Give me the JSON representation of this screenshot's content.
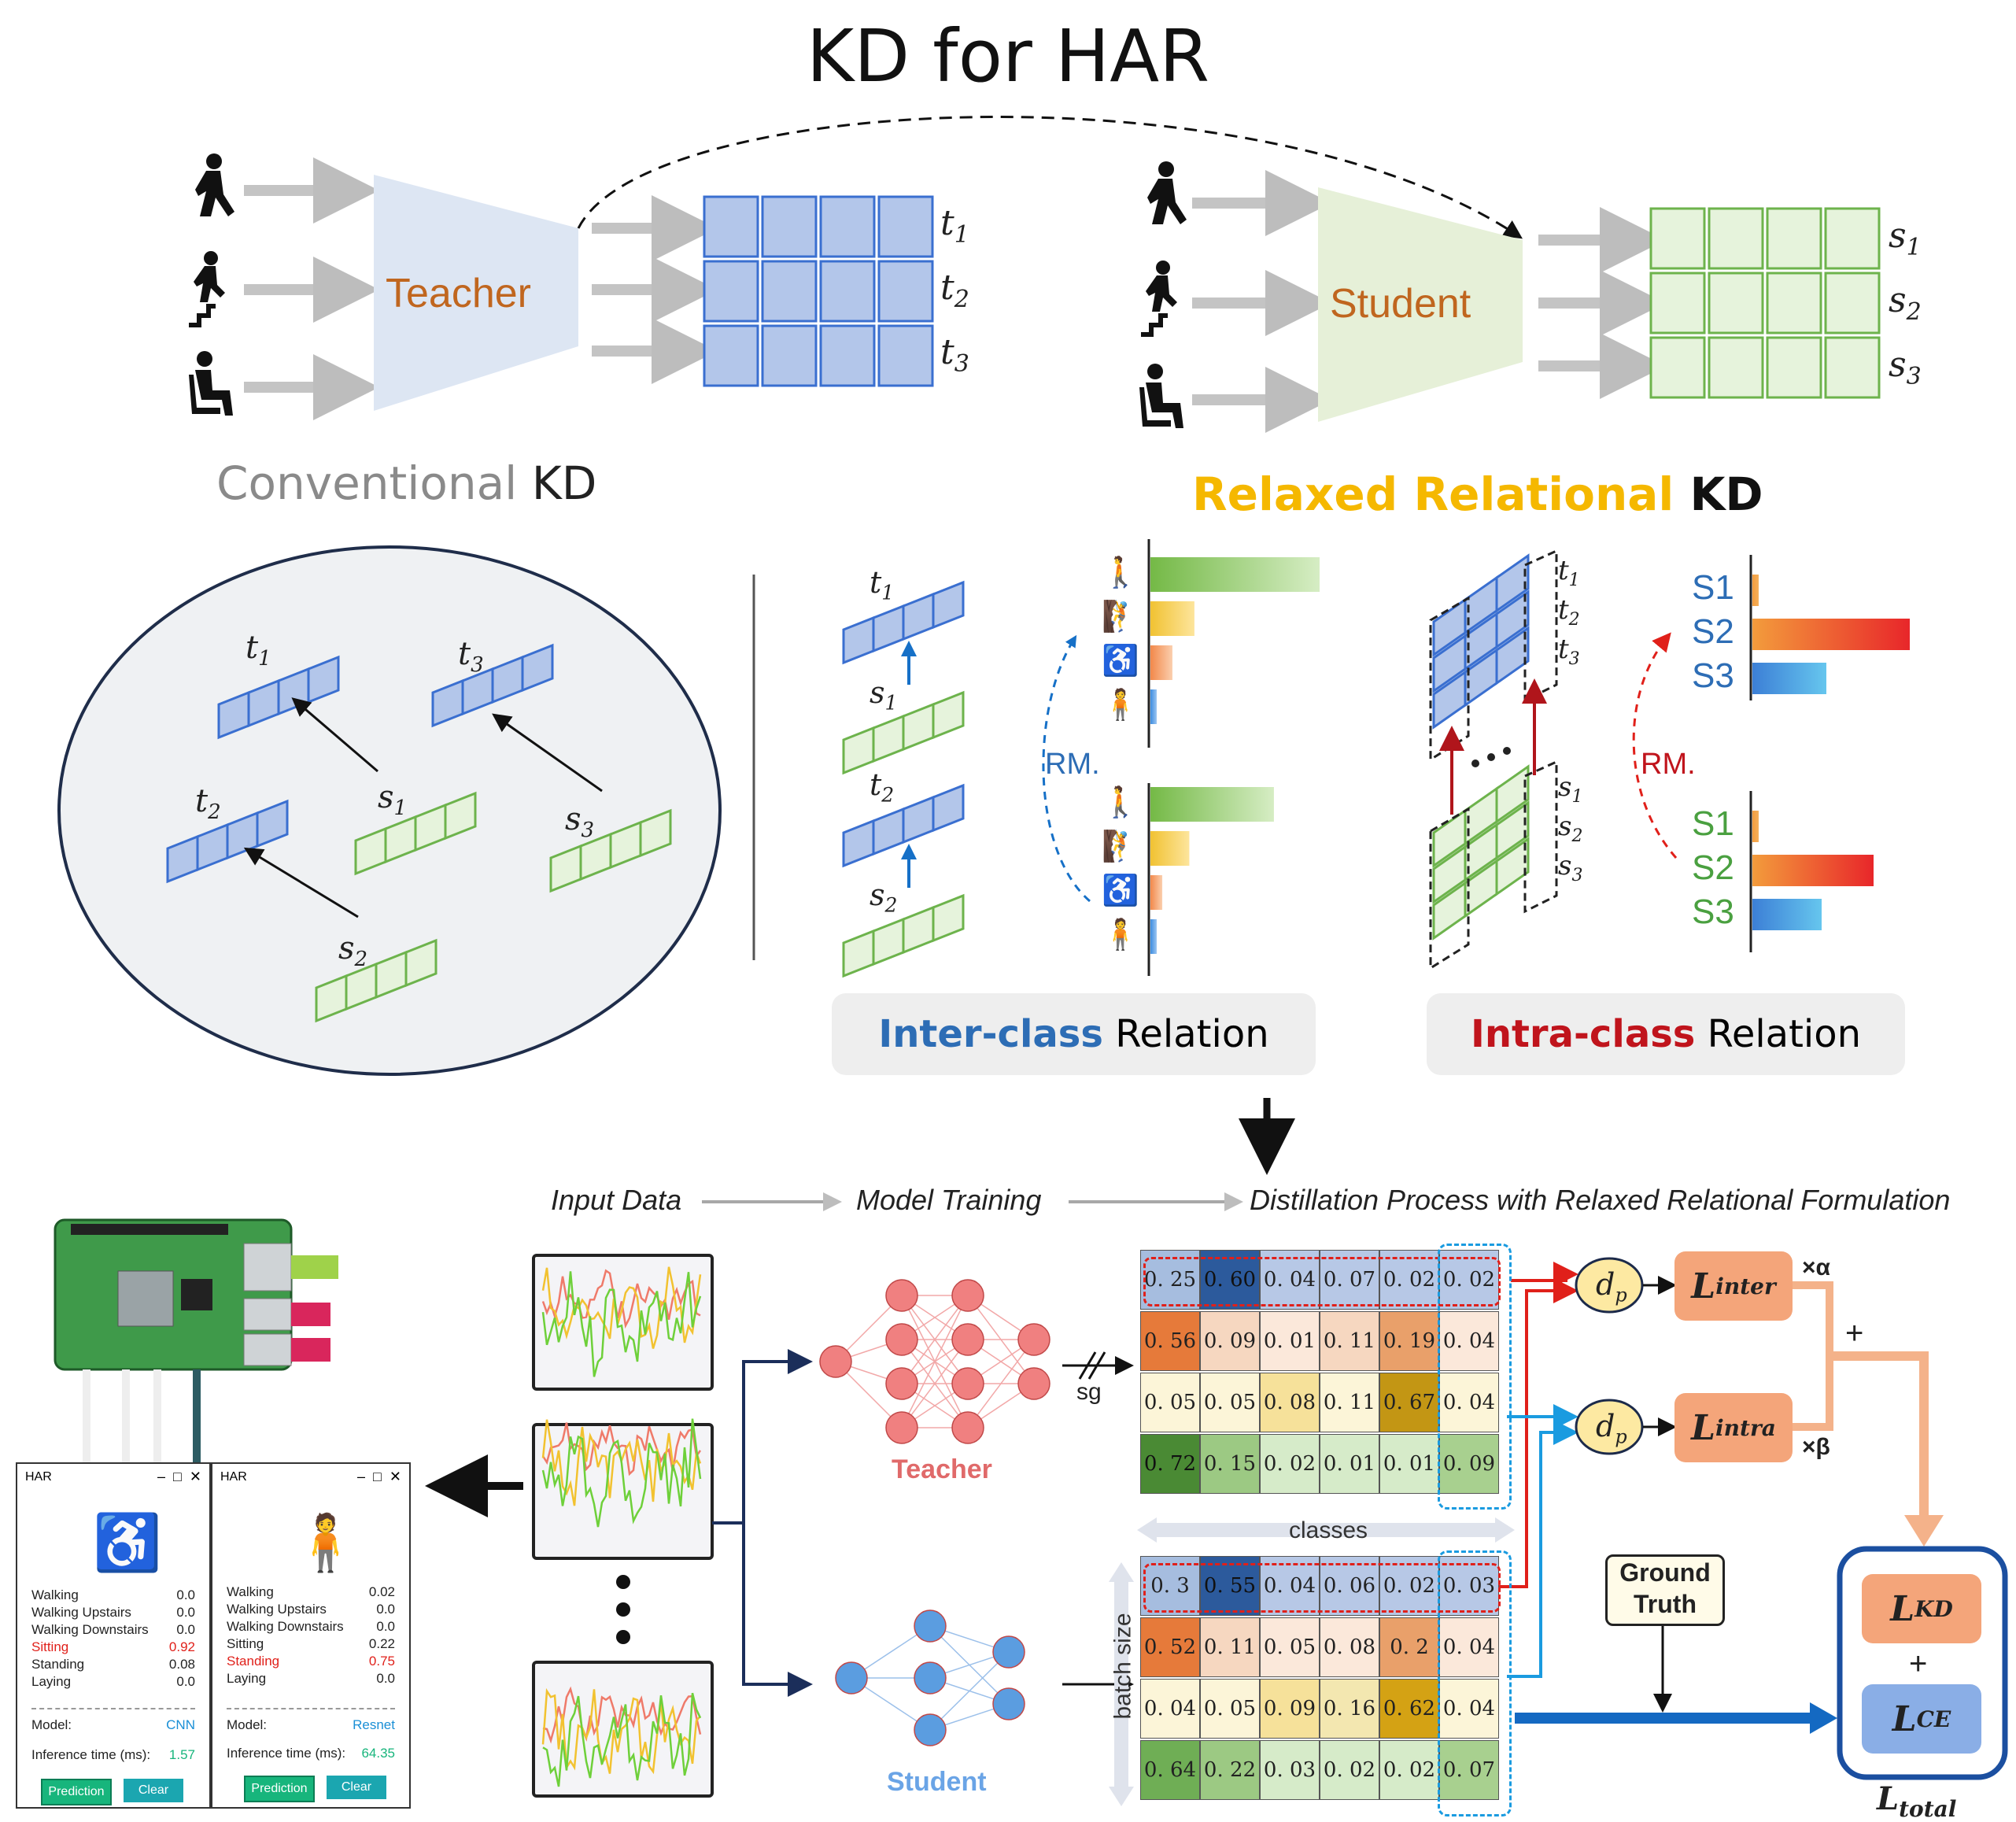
{
  "title": "KD for HAR",
  "top": {
    "teacher_label": "Teacher",
    "student_label": "Student",
    "teacher_outputs": [
      "t",
      "t",
      "t"
    ],
    "teacher_subs": [
      "1",
      "2",
      "3"
    ],
    "student_outputs": [
      "s",
      "s",
      "s"
    ],
    "student_subs": [
      "1",
      "2",
      "3"
    ],
    "conventional_a": "Conventional",
    "conventional_b": "KD",
    "relaxed_a": "Relaxed Relational",
    "relaxed_b": "KD"
  },
  "conventional_panel": {
    "labels": [
      {
        "t": "t",
        "s": "1"
      },
      {
        "t": "t",
        "s": "3"
      },
      {
        "t": "t",
        "s": "2"
      },
      {
        "t": "s",
        "s": "1"
      },
      {
        "t": "s",
        "s": "3"
      },
      {
        "t": "s",
        "s": "2"
      }
    ]
  },
  "inter_panel": {
    "vec_labels": [
      {
        "t": "t",
        "s": "1"
      },
      {
        "t": "s",
        "s": "1"
      },
      {
        "t": "t",
        "s": "2"
      },
      {
        "t": "s",
        "s": "2"
      }
    ],
    "rm_label": "RM.",
    "bars_top": [
      1.0,
      0.26,
      0.13,
      0.03
    ],
    "bars_bottom": [
      0.73,
      0.23,
      0.07,
      0.03
    ],
    "caption_a": "Inter-class",
    "caption_b": " Relation"
  },
  "intra_panel": {
    "t_labels": [
      {
        "t": "t",
        "s": "1"
      },
      {
        "t": "t",
        "s": "2"
      },
      {
        "t": "t",
        "s": "3"
      }
    ],
    "s_labels": [
      {
        "t": "s",
        "s": "1"
      },
      {
        "t": "s",
        "s": "2"
      },
      {
        "t": "s",
        "s": "3"
      }
    ],
    "rm_label": "RM.",
    "bar_labels_top": [
      "S1",
      "S2",
      "S3"
    ],
    "bar_labels_bottom": [
      "S1",
      "S2",
      "S3"
    ],
    "bars_top": [
      0.03,
      1.0,
      0.47
    ],
    "bars_bottom": [
      0.03,
      0.77,
      0.44
    ],
    "caption_a": "Intra-class",
    "caption_b": " Relation"
  },
  "pipeline": {
    "step1": "Input  Data",
    "step2": "Model Training",
    "step3": "Distillation Process with Relaxed Relational Formulation",
    "teacher_label": "Teacher",
    "student_label": "Student",
    "sg_label": "sg",
    "classes_label": "classes",
    "batch_label": "batch size",
    "ground_truth_a": "Ground",
    "ground_truth_b": "Truth",
    "dp_label": "d",
    "dp_sub": "p",
    "alpha": "×α",
    "beta": "×β",
    "plus": "+",
    "loss_inter": "L",
    "loss_inter_sub": "inter",
    "loss_intra": "L",
    "loss_intra_sub": "intra",
    "loss_kd": "L",
    "loss_kd_sub": "KD",
    "loss_ce": "L",
    "loss_ce_sub": "CE",
    "loss_total": "L",
    "loss_total_sub": "total",
    "teacher_matrix": [
      [
        "0. 25",
        "0. 60",
        "0. 04",
        "0. 07",
        "0. 02",
        "0. 02"
      ],
      [
        "0. 56",
        "0. 09",
        "0. 01",
        "0. 11",
        "0. 19",
        "0. 04"
      ],
      [
        "0. 05",
        "0. 05",
        "0. 08",
        "0. 11",
        "0. 67",
        "0. 04"
      ],
      [
        "0. 72",
        "0. 15",
        "0. 02",
        "0. 01",
        "0. 01",
        "0. 09"
      ]
    ],
    "student_matrix": [
      [
        "0. 3",
        "0. 55",
        "0. 04",
        "0. 06",
        "0. 02",
        "0. 03"
      ],
      [
        "0. 52",
        "0. 11",
        "0. 05",
        "0. 08",
        "0. 2",
        "0. 04"
      ],
      [
        "0. 04",
        "0. 05",
        "0. 09",
        "0. 16",
        "0. 62",
        "0. 04"
      ],
      [
        "0. 64",
        "0. 22",
        "0. 03",
        "0. 02",
        "0. 02",
        "0. 07"
      ]
    ],
    "teacher_colors": [
      [
        "#a6bddf",
        "#2c5a9c",
        "#b7c8e6",
        "#b7c8e6",
        "#b7c8e6",
        "#b7c8e6"
      ],
      [
        "#e67a3a",
        "#f6d7c0",
        "#fbe8da",
        "#f6d7c0",
        "#e9a06a",
        "#fbe8da"
      ],
      [
        "#fcf5d8",
        "#fcf5d8",
        "#f6e19a",
        "#fcf5d8",
        "#c39614",
        "#fcf5d8"
      ],
      [
        "#4a8a34",
        "#9cc983",
        "#d6ebc9",
        "#d6ebc9",
        "#d6ebc9",
        "#a8d08f"
      ]
    ],
    "student_colors": [
      [
        "#a6bddf",
        "#2c5a9c",
        "#b7c8e6",
        "#b7c8e6",
        "#b7c8e6",
        "#b7c8e6"
      ],
      [
        "#e67a3a",
        "#f6d7c0",
        "#fbe8da",
        "#fbe8da",
        "#e9a06a",
        "#fbe8da"
      ],
      [
        "#fcf5d8",
        "#fcf5d8",
        "#f6e19a",
        "#f3e7b0",
        "#d4a214",
        "#fcf5d8"
      ],
      [
        "#6fae55",
        "#9cc983",
        "#d6ebc9",
        "#d6ebc9",
        "#d6ebc9",
        "#a8d08f"
      ]
    ]
  },
  "app_left": {
    "title": "HAR",
    "rows": [
      {
        "label": "Walking",
        "value": "0.0",
        "hl": false
      },
      {
        "label": "Walking Upstairs",
        "value": "0.0",
        "hl": false
      },
      {
        "label": "Walking Downstairs",
        "value": "0.0",
        "hl": false
      },
      {
        "label": "Sitting",
        "value": "0.92",
        "hl": true
      },
      {
        "label": "Standing",
        "value": "0.08",
        "hl": false
      },
      {
        "label": "Laying",
        "value": "0.0",
        "hl": false
      }
    ],
    "model_label": "Model:",
    "model_value": "CNN",
    "time_label": "Inference time (ms):",
    "time_value": "1.57",
    "predict": "Prediction",
    "clear": "Clear"
  },
  "app_right": {
    "title": "HAR",
    "rows": [
      {
        "label": "Walking",
        "value": "0.02",
        "hl": false
      },
      {
        "label": "Walking Upstairs",
        "value": "0.0",
        "hl": false
      },
      {
        "label": "Walking Downstairs",
        "value": "0.0",
        "hl": false
      },
      {
        "label": "Sitting",
        "value": "0.22",
        "hl": false
      },
      {
        "label": "Standing",
        "value": "0.75",
        "hl": true
      },
      {
        "label": "Laying",
        "value": "0.0",
        "hl": false
      }
    ],
    "model_label": "Model:",
    "model_value": "Resnet",
    "time_label": "Inference time (ms):",
    "time_value": "64.35",
    "predict": "Prediction",
    "clear": "Clear"
  },
  "colors": {
    "teacher_vec": "#b3c6ea",
    "teacher_vec_stroke": "#3a6fd0",
    "student_vec": "#e6f3dc",
    "student_vec_stroke": "#6db34c",
    "teacher_node": "#f08080",
    "student_node": "#5b9de0",
    "loss_orange": "#f4a57a",
    "loss_blue": "#8aaee6",
    "dp_fill": "#fdeaa6"
  }
}
